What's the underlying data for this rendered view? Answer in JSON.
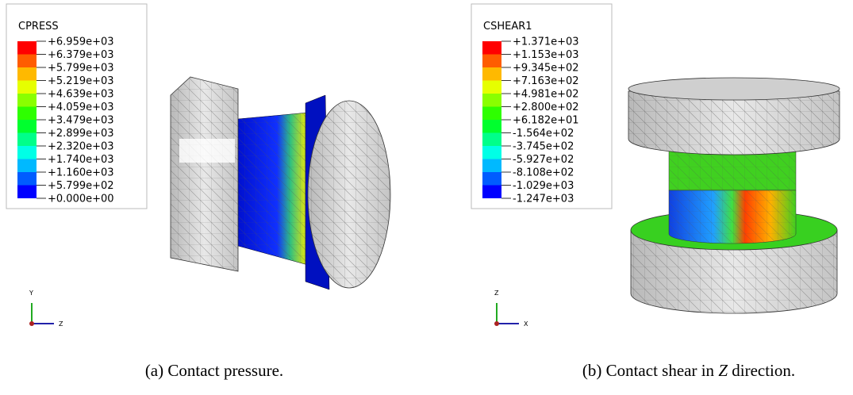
{
  "panels": [
    {
      "legend": {
        "title": "CPRESS",
        "labels": [
          "+6.959e+03",
          "+6.379e+03",
          "+5.799e+03",
          "+5.219e+03",
          "+4.639e+03",
          "+4.059e+03",
          "+3.479e+03",
          "+2.899e+03",
          "+2.320e+03",
          "+1.740e+03",
          "+1.160e+03",
          "+5.799e+02",
          "+0.000e+00"
        ],
        "colors": [
          "#ff0000",
          "#ff5c00",
          "#ffb900",
          "#e6ff00",
          "#8aff00",
          "#2eff00",
          "#00ff2e",
          "#00ff8a",
          "#00ffe6",
          "#00b9ff",
          "#005cff",
          "#0000ff"
        ]
      },
      "triad": {
        "up": "Y",
        "right": "Z"
      },
      "caption": {
        "label": "(a)",
        "before": "Contact pressure.",
        "emph": "",
        "after": ""
      }
    },
    {
      "legend": {
        "title": "CSHEAR1",
        "labels": [
          "+1.371e+03",
          "+1.153e+03",
          "+9.345e+02",
          "+7.163e+02",
          "+4.981e+02",
          "+2.800e+02",
          "+6.182e+01",
          "-1.564e+02",
          "-3.745e+02",
          "-5.927e+02",
          "-8.108e+02",
          "-1.029e+03",
          "-1.247e+03"
        ],
        "colors": [
          "#ff0000",
          "#ff5c00",
          "#ffb900",
          "#e6ff00",
          "#8aff00",
          "#2eff00",
          "#00ff2e",
          "#00ff8a",
          "#00ffe6",
          "#00b9ff",
          "#005cff",
          "#0000ff"
        ]
      },
      "triad": {
        "up": "Z",
        "right": "X"
      },
      "caption": {
        "label": "(b)",
        "before": "Contact shear in",
        "emph": "Z",
        "after": "direction."
      }
    }
  ]
}
